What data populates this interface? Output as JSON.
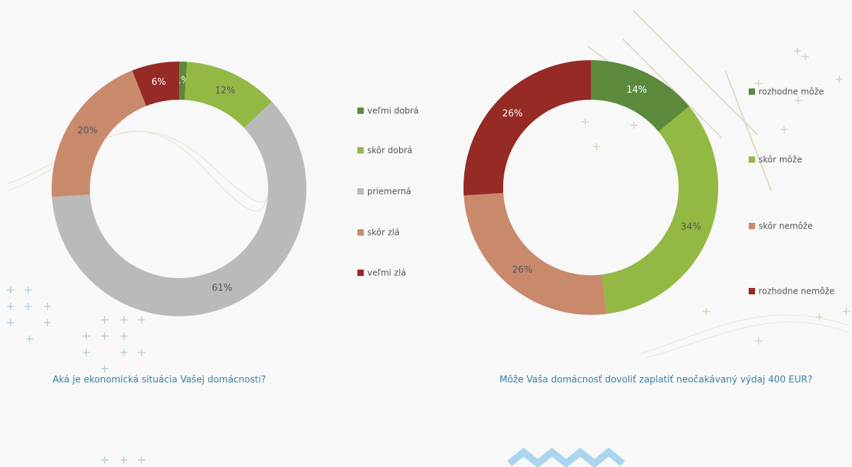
{
  "chart_data": [
    {
      "type": "pie",
      "title": "Aká je ekonomická situácia Vašej domácnosti?",
      "categories": [
        "veľmi dobrá",
        "skôr dobrá",
        "priemerná",
        "skôr zlá",
        "veľmi zlá"
      ],
      "values": [
        1,
        12,
        61,
        20,
        6
      ],
      "value_labels": [
        "1%",
        "12%",
        "61%",
        "20%",
        "6%"
      ],
      "colors": [
        "#5b8a3c",
        "#93b944",
        "#bababa",
        "#c98a6c",
        "#962a25"
      ]
    },
    {
      "type": "pie",
      "title": "Môže Vaša domácnosť dovoliť zaplatiť neočakávaný výdaj 400 EUR?",
      "categories": [
        "rozhodne môže",
        "skôr môže",
        "skôr nemôže",
        "rozhodne nemôže"
      ],
      "values": [
        14,
        34,
        26,
        26
      ],
      "value_labels": [
        "14%",
        "34%",
        "26%",
        "26%"
      ],
      "colors": [
        "#5b8a3c",
        "#93b944",
        "#c98a6c",
        "#962a25"
      ]
    }
  ]
}
